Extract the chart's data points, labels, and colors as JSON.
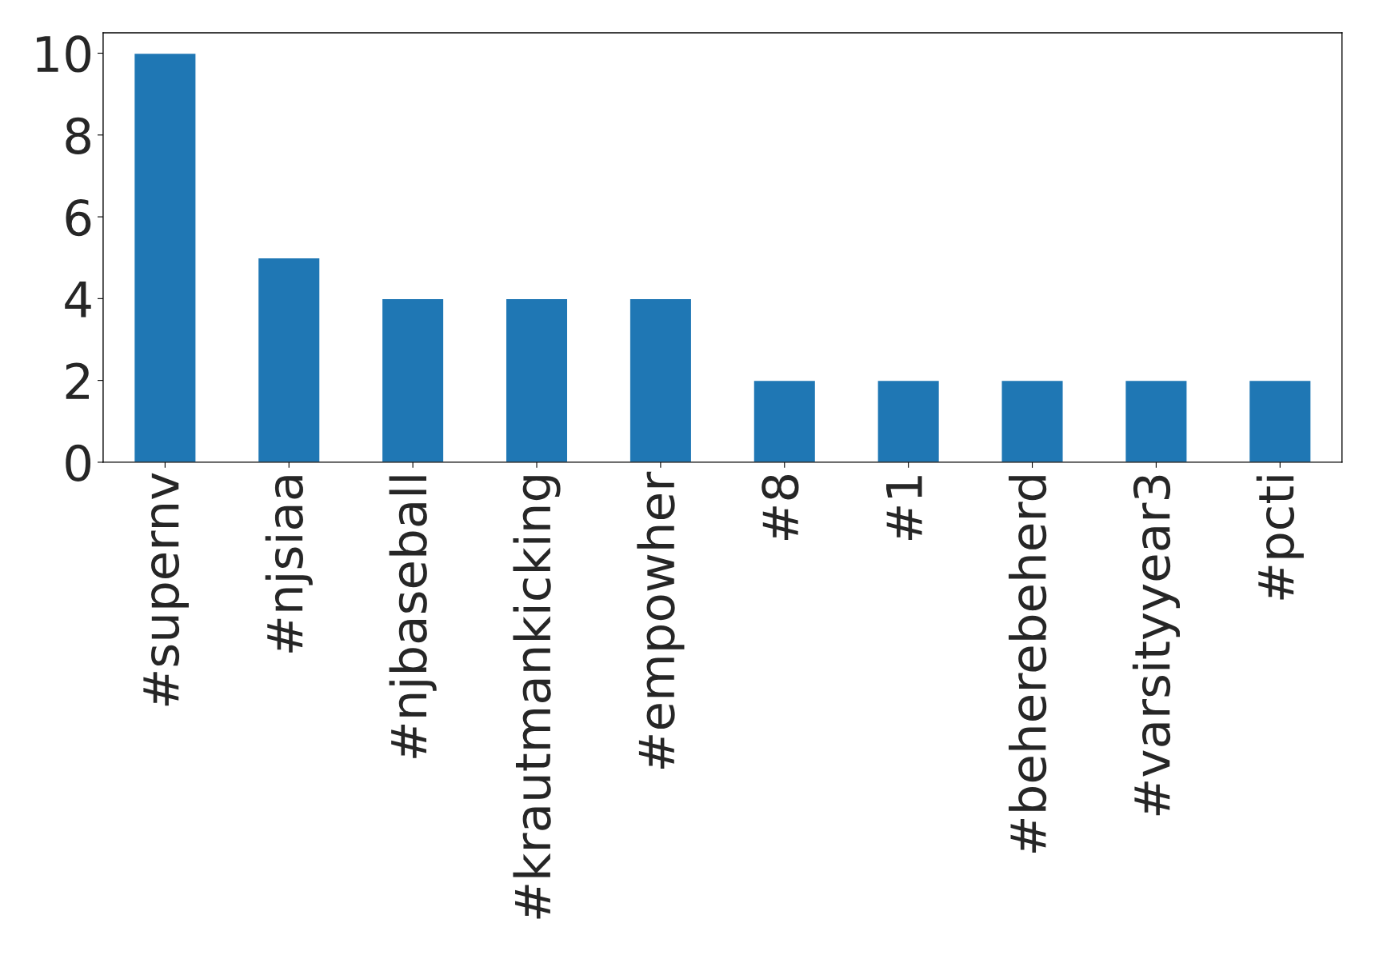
{
  "chart_data": {
    "type": "bar",
    "categories": [
      "#supernv",
      "#njsiaa",
      "#njbaseball",
      "#krautmankicking",
      "#empowher",
      "#8",
      "#1",
      "#beherebeherd",
      "#varsityyear3",
      "#pcti"
    ],
    "values": [
      10,
      5,
      4,
      4,
      4,
      2,
      2,
      2,
      2,
      2
    ],
    "color": "#1f77b4",
    "ylim": [
      0,
      10.5
    ],
    "yticks": [
      0,
      2,
      4,
      6,
      8,
      10
    ],
    "grid": false,
    "legend": false
  }
}
